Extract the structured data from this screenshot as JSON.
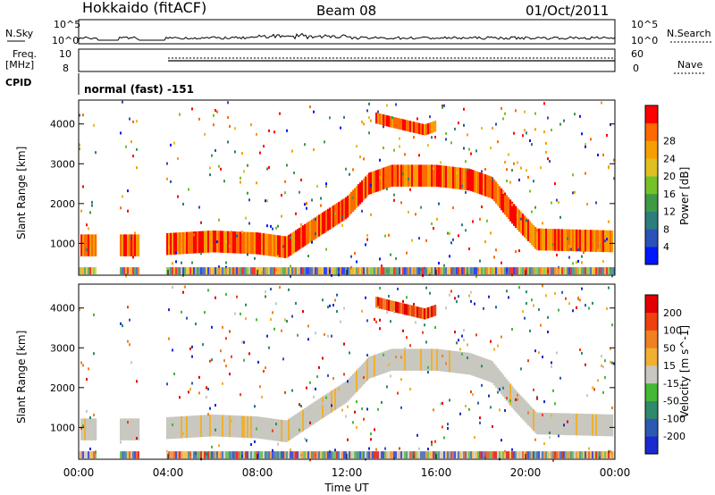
{
  "header": {
    "site": "Hokkaido (fitACF)",
    "beam": "Beam 08",
    "date": "01/Oct/2011"
  },
  "strips": {
    "nsky_label": "N.Sky",
    "nsearch_label": "N.Search",
    "left_ticks": [
      "10^5",
      "10^0"
    ],
    "right_ticks": [
      "10^5",
      "10^0"
    ],
    "freq_label_top": "Freq.",
    "freq_label_bottom": "[MHz]",
    "freq_ticks": [
      "10",
      "8"
    ],
    "nave_label": "Nave",
    "nave_ticks": [
      "60",
      "0"
    ],
    "cpid_label": "CPID",
    "cpid_text": "normal (fast) -151"
  },
  "panels": {
    "y_axis_label": "Slant Range [km]",
    "y_ticks": [
      "1000",
      "2000",
      "3000",
      "4000"
    ],
    "x_ticks": [
      "00:00",
      "04:00",
      "08:00",
      "12:00",
      "16:00",
      "20:00",
      "00:00"
    ],
    "x_axis_label": "Time UT"
  },
  "power_bar": {
    "title": "Power [dB]",
    "ticks": [
      "4",
      "8",
      "12",
      "16",
      "20",
      "24",
      "28"
    ],
    "colors": [
      "#0018ff",
      "#2a52b8",
      "#2e7d7d",
      "#3e9a45",
      "#74c228",
      "#e0c020",
      "#f5a000",
      "#ff6a00",
      "#ff0000"
    ]
  },
  "velocity_bar": {
    "title": "Velocity [m s^-1]",
    "ticks": [
      "200",
      "100",
      "50",
      "15",
      "-15",
      "-50",
      "-100",
      "-200"
    ],
    "colors": [
      "#1a2ad0",
      "#2d5ab0",
      "#2e8a6a",
      "#45b835",
      "#c8c8c0",
      "#f0b030",
      "#f08020",
      "#f04010",
      "#e00000"
    ]
  },
  "chart_data": {
    "type": "heatmap",
    "x_range_hours": [
      0,
      24
    ],
    "y_range_km": [
      200,
      4600
    ],
    "gaps_hours": [
      [
        0.8,
        1.8
      ],
      [
        2.7,
        3.9
      ]
    ],
    "echo_bands": [
      {
        "name": "",
        "points_hour_km": [
          [
            0.1,
            950
          ],
          [
            0.8,
            950
          ],
          [
            1.8,
            950
          ],
          [
            2.7,
            950
          ],
          [
            3.9,
            980
          ],
          [
            6.0,
            1050
          ],
          [
            8.0,
            1000
          ],
          [
            9.3,
            900
          ],
          [
            10.5,
            1350
          ],
          [
            12.0,
            1900
          ],
          [
            13.0,
            2500
          ],
          [
            14.0,
            2700
          ],
          [
            16.0,
            2700
          ],
          [
            17.5,
            2600
          ],
          [
            18.5,
            2400
          ],
          [
            19.5,
            1700
          ],
          [
            20.5,
            1100
          ],
          [
            23.9,
            1050
          ]
        ],
        "width_km": 550
      },
      {
        "name": "",
        "points_hour_km": [
          [
            13.3,
            4150
          ],
          [
            14.0,
            4050
          ],
          [
            15.5,
            3850
          ],
          [
            16.0,
            3950
          ]
        ],
        "width_km": 280
      }
    ]
  }
}
